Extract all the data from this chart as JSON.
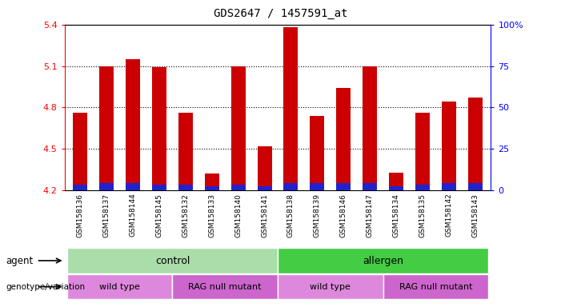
{
  "title": "GDS2647 / 1457591_at",
  "samples": [
    "GSM158136",
    "GSM158137",
    "GSM158144",
    "GSM158145",
    "GSM158132",
    "GSM158133",
    "GSM158140",
    "GSM158141",
    "GSM158138",
    "GSM158139",
    "GSM158146",
    "GSM158147",
    "GSM158134",
    "GSM158135",
    "GSM158142",
    "GSM158143"
  ],
  "red_values": [
    4.76,
    5.1,
    5.15,
    5.09,
    4.76,
    4.32,
    5.1,
    4.52,
    5.38,
    4.74,
    4.94,
    5.1,
    4.33,
    4.76,
    4.84,
    4.87
  ],
  "blue_values": [
    4.24,
    4.25,
    4.25,
    4.24,
    4.24,
    4.23,
    4.24,
    4.23,
    4.25,
    4.25,
    4.25,
    4.25,
    4.23,
    4.24,
    4.25,
    4.25
  ],
  "ymin": 4.2,
  "ymax": 5.4,
  "yticks": [
    4.2,
    4.5,
    4.8,
    5.1,
    5.4
  ],
  "right_yticks": [
    0,
    25,
    50,
    75,
    100
  ],
  "right_yticklabels": [
    "0",
    "25",
    "50",
    "75",
    "100%"
  ],
  "bar_color_red": "#cc0000",
  "bar_color_blue": "#2222cc",
  "agent_control_color": "#aaddaa",
  "agent_allergen_color": "#44cc44",
  "genotype_wt_color": "#dd88dd",
  "genotype_rag_color": "#cc66cc",
  "agent_groups": [
    {
      "label": "control",
      "start": 0,
      "end": 7
    },
    {
      "label": "allergen",
      "start": 8,
      "end": 15
    }
  ],
  "genotype_groups": [
    {
      "label": "wild type",
      "start": 0,
      "end": 3
    },
    {
      "label": "RAG null mutant",
      "start": 4,
      "end": 7
    },
    {
      "label": "wild type",
      "start": 8,
      "end": 11
    },
    {
      "label": "RAG null mutant",
      "start": 12,
      "end": 15
    }
  ]
}
